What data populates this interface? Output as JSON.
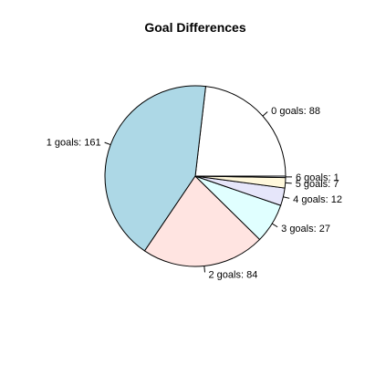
{
  "chart_data": {
    "type": "pie",
    "title": "Goal Differences",
    "categories": [
      "0 goals",
      "1 goals",
      "2 goals",
      "3 goals",
      "4 goals",
      "5 goals",
      "6 goals"
    ],
    "values": [
      88,
      161,
      84,
      27,
      12,
      7,
      1
    ],
    "labels": [
      "0 goals: 88",
      "1 goals: 161",
      "2 goals: 84",
      "3 goals: 27",
      "4 goals: 12",
      "5 goals: 7",
      "6 goals: 1"
    ],
    "colors": [
      "#FFFFFF",
      "#ADD8E6",
      "#FFE4E1",
      "#E0FFFF",
      "#E6E6FA",
      "#FFF8DC",
      "#F0F8FF"
    ],
    "direction": "counterclockwise",
    "start_angle_degrees": 0
  }
}
